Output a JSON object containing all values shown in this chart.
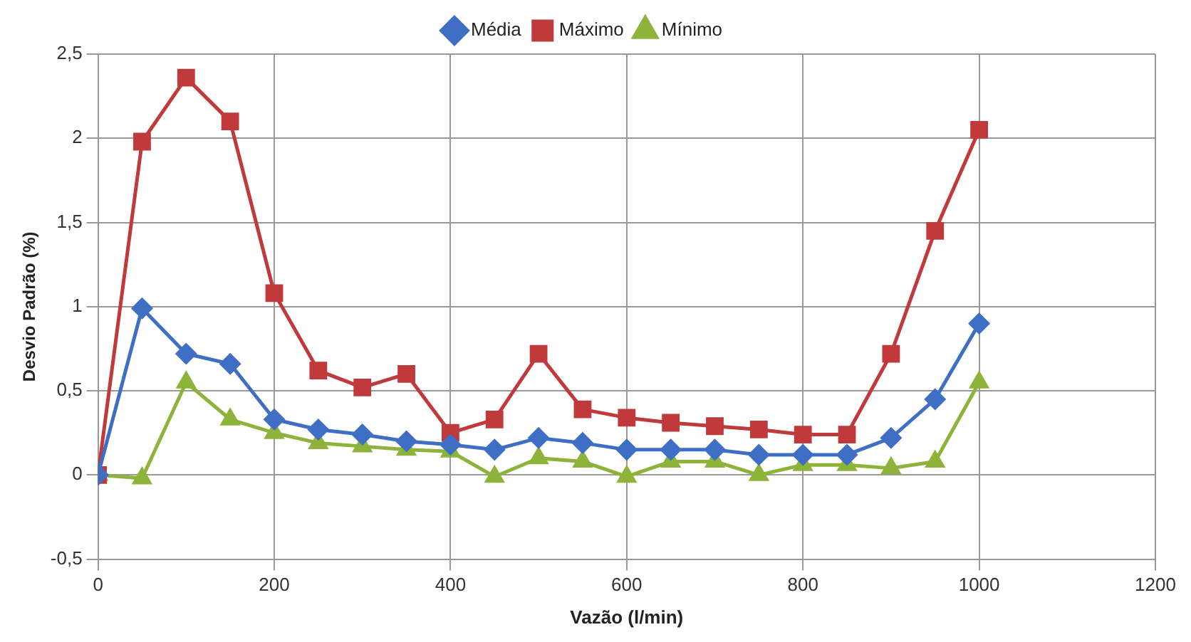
{
  "chart_data": {
    "type": "line",
    "xlabel": "Vazão (l/min)",
    "ylabel": "Desvio Padrão (%)",
    "x": [
      0,
      50,
      100,
      150,
      200,
      250,
      300,
      350,
      400,
      450,
      500,
      550,
      600,
      650,
      700,
      750,
      800,
      850,
      900,
      950,
      1000
    ],
    "series": [
      {
        "name": "Média",
        "color": "#3f6fc4",
        "marker": "diamond",
        "values": [
          0,
          0.99,
          0.72,
          0.66,
          0.33,
          0.27,
          0.24,
          0.2,
          0.18,
          0.15,
          0.22,
          0.19,
          0.15,
          0.15,
          0.15,
          0.12,
          0.12,
          0.12,
          0.22,
          0.45,
          0.9
        ]
      },
      {
        "name": "Máximo",
        "color": "#c0393b",
        "marker": "square",
        "values": [
          0,
          1.98,
          2.36,
          2.1,
          1.08,
          0.62,
          0.52,
          0.6,
          0.25,
          0.33,
          0.72,
          0.39,
          0.34,
          0.31,
          0.29,
          0.27,
          0.24,
          0.24,
          0.72,
          1.45,
          2.05
        ]
      },
      {
        "name": "Mínimo",
        "color": "#8db33a",
        "marker": "triangle",
        "values": [
          0,
          -0.02,
          0.55,
          0.33,
          0.25,
          0.19,
          0.17,
          0.15,
          0.14,
          -0.01,
          0.1,
          0.08,
          -0.01,
          0.08,
          0.08,
          0,
          0.06,
          0.06,
          0.04,
          0.08,
          0.55
        ]
      }
    ],
    "xlim": [
      0,
      1200
    ],
    "xticks": [
      0,
      200,
      400,
      600,
      800,
      1000,
      1200
    ],
    "ylim": [
      -0.5,
      2.5
    ],
    "yticks": [
      {
        "value": -0.5,
        "label": "-0,5"
      },
      0,
      {
        "value": 0.5,
        "label": "0,5"
      },
      1,
      {
        "value": 1.5,
        "label": "1,5"
      },
      2,
      {
        "value": 2.5,
        "label": "2,5"
      }
    ],
    "grid": true,
    "legend": "top",
    "line_style": "solid"
  }
}
